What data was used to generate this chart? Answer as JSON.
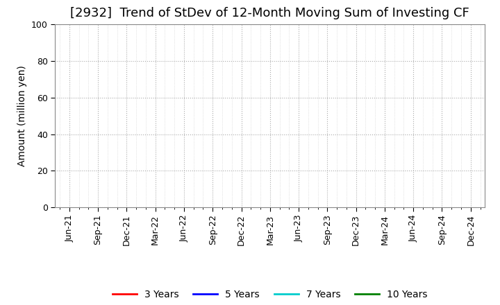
{
  "title": "[2932]  Trend of StDev of 12-Month Moving Sum of Investing CF",
  "ylabel": "Amount (million yen)",
  "ylim": [
    0,
    100
  ],
  "yticks": [
    0,
    20,
    40,
    60,
    80,
    100
  ],
  "x_labels": [
    "Jun-21",
    "Sep-21",
    "Dec-21",
    "Mar-22",
    "Jun-22",
    "Sep-22",
    "Dec-22",
    "Mar-23",
    "Jun-23",
    "Sep-23",
    "Dec-23",
    "Mar-24",
    "Jun-24",
    "Sep-24",
    "Dec-24"
  ],
  "background_color": "#ffffff",
  "grid_color": "#aaaaaa",
  "minor_grid_color": "#cccccc",
  "legend_entries": [
    "3 Years",
    "5 Years",
    "7 Years",
    "10 Years"
  ],
  "legend_colors": [
    "#ff0000",
    "#0000ff",
    "#00cccc",
    "#008000"
  ],
  "title_fontsize": 13,
  "label_fontsize": 10,
  "tick_fontsize": 9
}
